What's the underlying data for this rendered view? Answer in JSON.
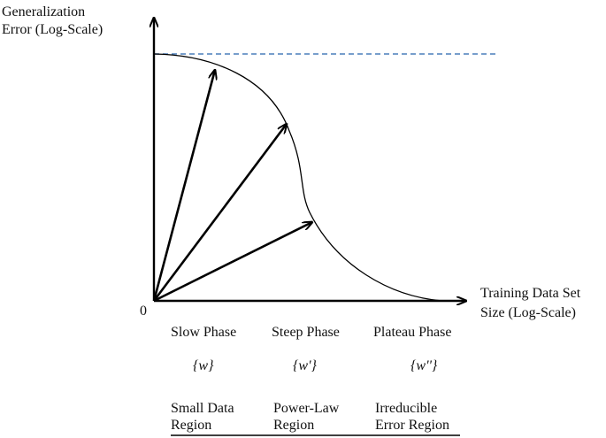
{
  "y_axis_label": [
    "Generalization",
    "Error (Log-Scale)"
  ],
  "x_axis_label": [
    "Training Data Set",
    "Size (Log-Scale)"
  ],
  "origin_label": "0",
  "phases": [
    {
      "phase": "Slow Phase",
      "weights": "{w}",
      "region": [
        "Small Data",
        "Region"
      ]
    },
    {
      "phase": "Steep Phase",
      "weights": "{w'}",
      "region": [
        "Power-Law",
        "Region"
      ]
    },
    {
      "phase": "Plateau Phase",
      "weights": "{w''}",
      "region": [
        "Irreducible",
        "Error Region"
      ]
    }
  ],
  "colors": {
    "axis": "#000000",
    "curve": "#000000",
    "dashed_line": "#4a7ebb",
    "text": "#111111"
  }
}
